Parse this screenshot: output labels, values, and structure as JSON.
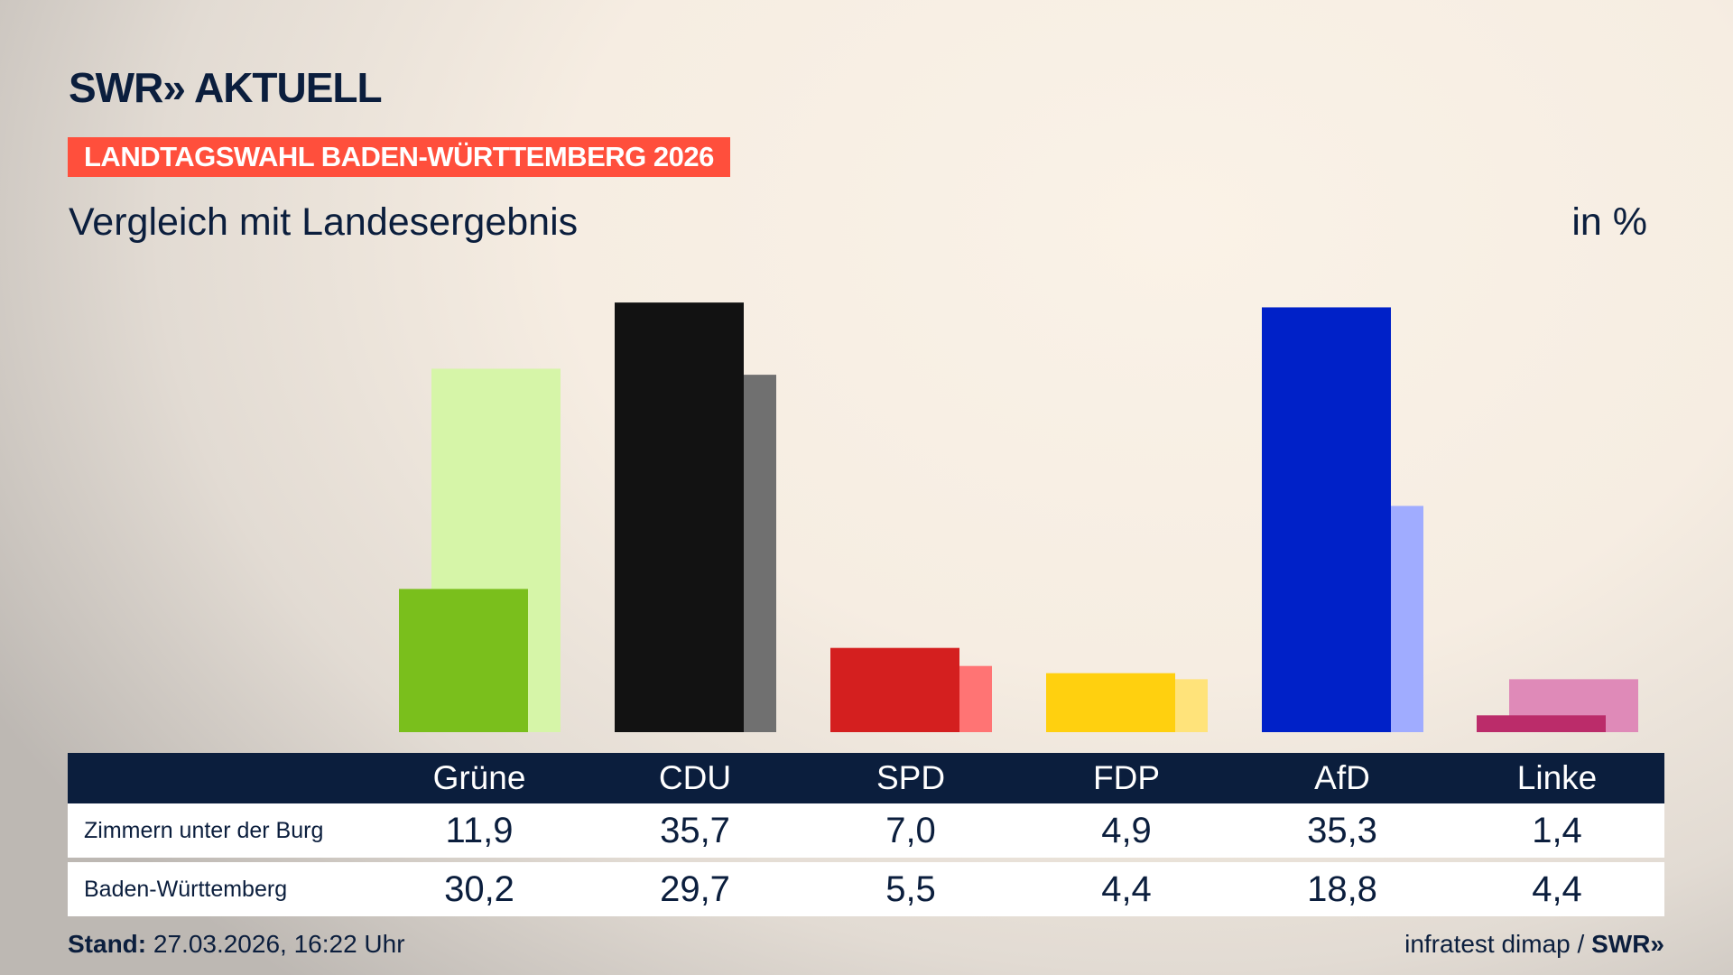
{
  "brand": "SWR» AKTUELL",
  "banner": "LANDTAGSWAHL BADEN-WÜRTTEMBERG 2026",
  "subtitle": "Vergleich mit Landesergebnis",
  "unit": "in %",
  "footer": {
    "stand_label": "Stand:",
    "stand_value": " 27.03.2026, 16:22 Uhr",
    "source": "infratest dimap / ",
    "source_brand": "SWR»"
  },
  "chart_data": {
    "type": "bar",
    "categories": [
      "Grüne",
      "CDU",
      "SPD",
      "FDP",
      "AfD",
      "Linke"
    ],
    "series": [
      {
        "name": "Zimmern unter der Burg",
        "values": [
          11.9,
          35.7,
          7.0,
          4.9,
          35.3,
          1.4
        ],
        "labels": [
          "11,9",
          "35,7",
          "7,0",
          "4,9",
          "35,3",
          "1,4"
        ]
      },
      {
        "name": "Baden-Württemberg",
        "values": [
          30.2,
          29.7,
          5.5,
          4.4,
          18.8,
          4.4
        ],
        "labels": [
          "30,2",
          "29,7",
          "5,5",
          "4,4",
          "18,8",
          "4,4"
        ]
      }
    ],
    "colors": {
      "primary": [
        "#7abf1c",
        "#121212",
        "#d41f1f",
        "#ffd00f",
        "#0021c8",
        "#bb2c6a"
      ],
      "secondary": [
        "#d6f5a8",
        "#707070",
        "#ff7474",
        "#ffe37a",
        "#a0acff",
        "#df8ab8"
      ]
    },
    "ylim": [
      0,
      36
    ],
    "grid": false
  }
}
